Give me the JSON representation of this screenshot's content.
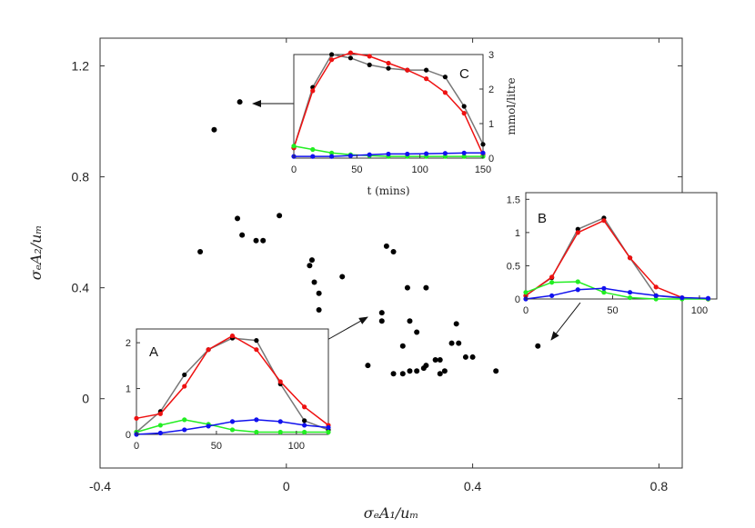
{
  "chart_data": {
    "type": "scatter",
    "xlabel": "σₑA₁/uₘ",
    "ylabel": "σₑA₂/uₘ",
    "xlim": [
      -0.4,
      0.85
    ],
    "ylim": [
      -0.25,
      1.3
    ],
    "xticks": [
      "-0.4",
      "0",
      "0.4",
      "0.8"
    ],
    "yticks": [
      "0",
      "0.4",
      "0.8",
      "1.2"
    ],
    "xtick_values": [
      -0.4,
      0,
      0.4,
      0.8
    ],
    "ytick_values": [
      0,
      0.4,
      0.8,
      1.2
    ],
    "points": [
      [
        -0.1,
        1.07
      ],
      [
        -0.155,
        0.97
      ],
      [
        -0.105,
        0.65
      ],
      [
        -0.095,
        0.59
      ],
      [
        -0.185,
        0.53
      ],
      [
        -0.065,
        0.57
      ],
      [
        -0.05,
        0.57
      ],
      [
        -0.015,
        0.66
      ],
      [
        0.05,
        0.48
      ],
      [
        0.055,
        0.5
      ],
      [
        0.06,
        0.42
      ],
      [
        0.07,
        0.38
      ],
      [
        0.07,
        0.32
      ],
      [
        0.12,
        0.44
      ],
      [
        0.205,
        0.31
      ],
      [
        0.205,
        0.28
      ],
      [
        0.215,
        0.55
      ],
      [
        0.23,
        0.53
      ],
      [
        0.25,
        0.19
      ],
      [
        0.26,
        0.4
      ],
      [
        0.265,
        0.28
      ],
      [
        0.28,
        0.24
      ],
      [
        0.3,
        0.4
      ],
      [
        0.175,
        0.12
      ],
      [
        0.23,
        0.09
      ],
      [
        0.25,
        0.09
      ],
      [
        0.265,
        0.1
      ],
      [
        0.28,
        0.1
      ],
      [
        0.295,
        0.11
      ],
      [
        0.3,
        0.12
      ],
      [
        0.32,
        0.14
      ],
      [
        0.33,
        0.14
      ],
      [
        0.33,
        0.09
      ],
      [
        0.34,
        0.1
      ],
      [
        0.355,
        0.2
      ],
      [
        0.365,
        0.27
      ],
      [
        0.37,
        0.2
      ],
      [
        0.385,
        0.15
      ],
      [
        0.4,
        0.15
      ],
      [
        0.45,
        0.1
      ],
      [
        0.54,
        0.19
      ]
    ],
    "insets": [
      {
        "label": "C",
        "xlabel": "t (mins)",
        "ylabel": "mmol/litre",
        "xlim": [
          0,
          150
        ],
        "ylim": [
          0,
          3
        ],
        "xticks": [
          "0",
          "50",
          "100",
          "150"
        ],
        "xtick_values": [
          0,
          50,
          100,
          150
        ],
        "yticks": [
          "0",
          "1",
          "2",
          "3"
        ],
        "ytick_values": [
          0,
          1,
          2,
          3
        ],
        "yaxis": "right",
        "series": [
          {
            "name": "black",
            "line_color": "#777777",
            "marker_color": "#000000",
            "x": [
              0,
              15,
              30,
              45,
              60,
              75,
              90,
              105,
              120,
              135,
              150
            ],
            "y": [
              0.3,
              2.05,
              3.0,
              2.9,
              2.7,
              2.6,
              2.55,
              2.55,
              2.35,
              1.5,
              0.4
            ]
          },
          {
            "name": "red",
            "line_color": "#ee1111",
            "marker_color": "#ee1111",
            "x": [
              0,
              15,
              30,
              45,
              60,
              75,
              90,
              105,
              120,
              135,
              150
            ],
            "y": [
              0.3,
              1.95,
              2.85,
              3.05,
              2.95,
              2.75,
              2.55,
              2.3,
              1.9,
              1.3,
              0.1
            ]
          },
          {
            "name": "green",
            "line_color": "#22ee22",
            "marker_color": "#22ee22",
            "x": [
              0,
              15,
              30,
              45,
              60,
              75,
              90,
              105,
              120,
              135,
              150
            ],
            "y": [
              0.35,
              0.25,
              0.15,
              0.1,
              0.07,
              0.05,
              0.05,
              0.05,
              0.05,
              0.05,
              0.05
            ]
          },
          {
            "name": "blue",
            "line_color": "#1111ee",
            "marker_color": "#1111ee",
            "x": [
              0,
              15,
              30,
              45,
              60,
              75,
              90,
              105,
              120,
              135,
              150
            ],
            "y": [
              0.05,
              0.05,
              0.05,
              0.07,
              0.1,
              0.12,
              0.12,
              0.13,
              0.14,
              0.15,
              0.15
            ]
          }
        ]
      },
      {
        "label": "B",
        "xlim": [
          0,
          110
        ],
        "ylim": [
          0,
          1.6
        ],
        "xticks": [
          "0",
          "50",
          "100"
        ],
        "xtick_values": [
          0,
          50,
          100
        ],
        "yticks": [
          "0",
          "0.5",
          "1",
          "1.5"
        ],
        "ytick_values": [
          0,
          0.5,
          1,
          1.5
        ],
        "yaxis": "left",
        "series": [
          {
            "name": "black",
            "line_color": "#777777",
            "marker_color": "#000000",
            "x": [
              0,
              15,
              30,
              45,
              60,
              75,
              90,
              105
            ],
            "y": [
              0.05,
              0.32,
              1.05,
              1.22,
              0.62,
              0.05,
              0.01,
              0.0
            ]
          },
          {
            "name": "red",
            "line_color": "#ee1111",
            "marker_color": "#ee1111",
            "x": [
              0,
              15,
              30,
              45,
              60,
              75,
              90,
              105
            ],
            "y": [
              0.05,
              0.33,
              1.0,
              1.18,
              0.62,
              0.18,
              0.02,
              0.0
            ]
          },
          {
            "name": "green",
            "line_color": "#22ee22",
            "marker_color": "#22ee22",
            "x": [
              0,
              15,
              30,
              45,
              60,
              75,
              90,
              105
            ],
            "y": [
              0.1,
              0.25,
              0.26,
              0.1,
              0.02,
              0.0,
              0.0,
              0.0
            ]
          },
          {
            "name": "blue",
            "line_color": "#1111ee",
            "marker_color": "#1111ee",
            "x": [
              0,
              15,
              30,
              45,
              60,
              75,
              90,
              105
            ],
            "y": [
              0.0,
              0.05,
              0.14,
              0.16,
              0.1,
              0.05,
              0.02,
              0.01
            ]
          }
        ]
      },
      {
        "label": "A",
        "xlim": [
          0,
          120
        ],
        "ylim": [
          0,
          2.3
        ],
        "xticks": [
          "0",
          "50",
          "100"
        ],
        "xtick_values": [
          0,
          50,
          100
        ],
        "yticks": [
          "0",
          "1",
          "2"
        ],
        "ytick_values": [
          0,
          1,
          2
        ],
        "yaxis": "left",
        "series": [
          {
            "name": "black",
            "line_color": "#777777",
            "marker_color": "#000000",
            "x": [
              0,
              15,
              30,
              45,
              60,
              75,
              90,
              105,
              120
            ],
            "y": [
              0.05,
              0.5,
              1.3,
              1.85,
              2.1,
              2.05,
              1.1,
              0.3,
              0.1
            ]
          },
          {
            "name": "red",
            "line_color": "#ee1111",
            "marker_color": "#ee1111",
            "x": [
              0,
              15,
              30,
              45,
              60,
              75,
              90,
              105,
              120
            ],
            "y": [
              0.35,
              0.45,
              1.05,
              1.85,
              2.15,
              1.85,
              1.15,
              0.6,
              0.2
            ]
          },
          {
            "name": "green",
            "line_color": "#22ee22",
            "marker_color": "#22ee22",
            "x": [
              0,
              15,
              30,
              45,
              60,
              75,
              90,
              105,
              120
            ],
            "y": [
              0.05,
              0.2,
              0.32,
              0.22,
              0.1,
              0.05,
              0.05,
              0.05,
              0.05
            ]
          },
          {
            "name": "blue",
            "line_color": "#1111ee",
            "marker_color": "#1111ee",
            "x": [
              0,
              15,
              30,
              45,
              60,
              75,
              90,
              105,
              120
            ],
            "y": [
              0.0,
              0.03,
              0.1,
              0.18,
              0.28,
              0.32,
              0.28,
              0.2,
              0.15
            ]
          }
        ]
      }
    ]
  }
}
